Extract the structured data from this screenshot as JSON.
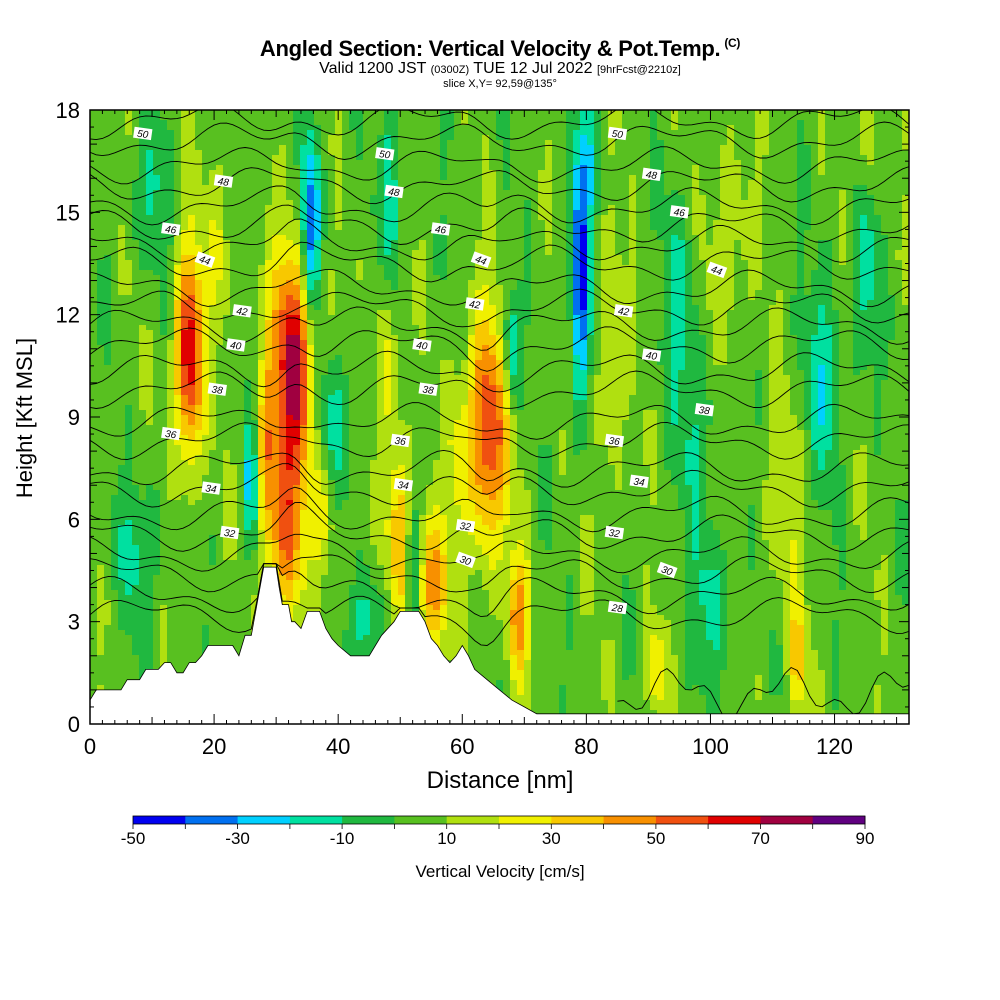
{
  "header": {
    "title": "Angled Section: Vertical Velocity & Pot.Temp.",
    "title_suffix": "(C)",
    "valid_prefix": "Valid 1200 JST",
    "valid_zulu": "(0300Z)",
    "valid_date": "TUE 12 Jul 2022",
    "forecast_tag": "[9hrFcst@2210z]",
    "slice_info": "slice X,Y= 92,59@135°"
  },
  "chart_data": {
    "type": "heatmap",
    "xlabel": "Distance [nm]",
    "ylabel": "Height [Kft MSL]",
    "xlim": [
      0,
      132
    ],
    "ylim": [
      0,
      18
    ],
    "x_ticks": [
      0,
      20,
      40,
      60,
      80,
      100,
      120
    ],
    "y_ticks": [
      0,
      3,
      6,
      9,
      12,
      15,
      18
    ],
    "background_level": 5,
    "colorbar": {
      "label": "Vertical Velocity [cm/s]",
      "tick_labels": [
        "-50",
        "-30",
        "-10",
        "10",
        "30",
        "50",
        "70",
        "90"
      ],
      "levels": [
        -50,
        -40,
        -30,
        -20,
        -10,
        0,
        10,
        20,
        30,
        40,
        50,
        60,
        70,
        80,
        90
      ],
      "colors": [
        "#0000f0",
        "#0070f0",
        "#00d0ff",
        "#00e0a0",
        "#20b840",
        "#58c020",
        "#b0e010",
        "#f0f000",
        "#f8c800",
        "#f89000",
        "#f05010",
        "#e00000",
        "#a00040",
        "#600080"
      ]
    },
    "features": [
      {
        "x": 16,
        "y": 10.8,
        "value": 70,
        "sx": 1.6,
        "sy": 2.2
      },
      {
        "x": 33,
        "y": 10.5,
        "value": 75,
        "sx": 2.5,
        "sy": 2.4
      },
      {
        "x": 31.5,
        "y": 5.5,
        "value": 45,
        "sx": 2.0,
        "sy": 1.8
      },
      {
        "x": 28.5,
        "y": 8.0,
        "value": 35,
        "sx": 1.2,
        "sy": 2.2
      },
      {
        "x": 35.5,
        "y": 14.3,
        "value": -45,
        "sx": 1.1,
        "sy": 2.0
      },
      {
        "x": 38.5,
        "y": 8.8,
        "value": -15,
        "sx": 2.5,
        "sy": 1.6
      },
      {
        "x": 37.5,
        "y": 6.2,
        "value": 25,
        "sx": 1.5,
        "sy": 1.4
      },
      {
        "x": 26.0,
        "y": 7.0,
        "value": -25,
        "sx": 0.8,
        "sy": 1.5
      },
      {
        "x": 48,
        "y": 11.0,
        "value": 25,
        "sx": 1.3,
        "sy": 2.6
      },
      {
        "x": 48.5,
        "y": 15.0,
        "value": -25,
        "sx": 1.0,
        "sy": 2.2
      },
      {
        "x": 50,
        "y": 5.5,
        "value": 45,
        "sx": 1.3,
        "sy": 1.8
      },
      {
        "x": 52,
        "y": 4.5,
        "value": -25,
        "sx": 0.9,
        "sy": 1.6
      },
      {
        "x": 55,
        "y": 4.0,
        "value": 45,
        "sx": 1.8,
        "sy": 1.4
      },
      {
        "x": 64,
        "y": 8.5,
        "value": 60,
        "sx": 2.4,
        "sy": 2.4
      },
      {
        "x": 59,
        "y": 7.5,
        "value": 20,
        "sx": 1.2,
        "sy": 2.0
      },
      {
        "x": 69,
        "y": 3.2,
        "value": 45,
        "sx": 1.2,
        "sy": 1.3
      },
      {
        "x": 68,
        "y": 11.0,
        "value": -25,
        "sx": 1.0,
        "sy": 1.2
      },
      {
        "x": 79,
        "y": 13.0,
        "value": -45,
        "sx": 1.1,
        "sy": 2.4
      },
      {
        "x": 80,
        "y": 16.5,
        "value": -15,
        "sx": 1.3,
        "sy": 1.2
      },
      {
        "x": 84,
        "y": 10.5,
        "value": 22,
        "sx": 1.5,
        "sy": 2.5
      },
      {
        "x": 45,
        "y": 3.0,
        "value": -15,
        "sx": 2.0,
        "sy": 1.0
      },
      {
        "x": 91,
        "y": 1.6,
        "value": 30,
        "sx": 1.3,
        "sy": 0.9
      },
      {
        "x": 114,
        "y": 1.8,
        "value": 35,
        "sx": 1.0,
        "sy": 1.2
      },
      {
        "x": 125,
        "y": 17.2,
        "value": 22,
        "sx": 1.1,
        "sy": 1.5
      },
      {
        "x": 103,
        "y": 14.0,
        "value": 18,
        "sx": 2.5,
        "sy": 2.5
      },
      {
        "x": 118,
        "y": 10.0,
        "value": -15,
        "sx": 2.0,
        "sy": 2.2
      },
      {
        "x": 95,
        "y": 12.5,
        "value": -12,
        "sx": 2.0,
        "sy": 2.0
      },
      {
        "x": 125,
        "y": 13.0,
        "value": -15,
        "sx": 1.5,
        "sy": 2.0
      },
      {
        "x": 10,
        "y": 15.5,
        "value": -12,
        "sx": 2.0,
        "sy": 1.5
      },
      {
        "x": 21,
        "y": 14.0,
        "value": 18,
        "sx": 1.5,
        "sy": 2.0
      },
      {
        "x": 100,
        "y": 3.5,
        "value": -12,
        "sx": 2.5,
        "sy": 1.5
      },
      {
        "x": 8,
        "y": 5.0,
        "value": -12,
        "sx": 2.5,
        "sy": 1.5
      },
      {
        "x": 112,
        "y": 6.0,
        "value": 18,
        "sx": 2.5,
        "sy": 2.0
      },
      {
        "x": 98,
        "y": 8.5,
        "value": -8,
        "sx": 3.0,
        "sy": 1.8
      }
    ],
    "terrain": [
      [
        0,
        0.7
      ],
      [
        1,
        1.0
      ],
      [
        5,
        1.0
      ],
      [
        6,
        1.3
      ],
      [
        8,
        1.3
      ],
      [
        9,
        1.6
      ],
      [
        11,
        1.6
      ],
      [
        12,
        1.8
      ],
      [
        13,
        1.8
      ],
      [
        14,
        1.5
      ],
      [
        15,
        1.5
      ],
      [
        16,
        1.8
      ],
      [
        17,
        1.8
      ],
      [
        18,
        2.0
      ],
      [
        19,
        2.3
      ],
      [
        23,
        2.3
      ],
      [
        24,
        2.0
      ],
      [
        25,
        2.6
      ],
      [
        26,
        2.6
      ],
      [
        27,
        3.6
      ],
      [
        28,
        4.6
      ],
      [
        30,
        4.6
      ],
      [
        30.5,
        4.0
      ],
      [
        31,
        3.5
      ],
      [
        32,
        3.5
      ],
      [
        32.5,
        3.0
      ],
      [
        33,
        3.0
      ],
      [
        34,
        2.8
      ],
      [
        35,
        3.3
      ],
      [
        37,
        3.3
      ],
      [
        38,
        2.8
      ],
      [
        39,
        2.5
      ],
      [
        40,
        2.3
      ],
      [
        42,
        2.0
      ],
      [
        45,
        2.0
      ],
      [
        46,
        2.3
      ],
      [
        47,
        2.6
      ],
      [
        49,
        3.0
      ],
      [
        50,
        3.3
      ],
      [
        53,
        3.3
      ],
      [
        54,
        3.0
      ],
      [
        55,
        2.5
      ],
      [
        56,
        2.3
      ],
      [
        57,
        2.0
      ],
      [
        58,
        1.8
      ],
      [
        59,
        2.0
      ],
      [
        60,
        2.3
      ],
      [
        61,
        2.0
      ],
      [
        62,
        1.6
      ],
      [
        64,
        1.3
      ],
      [
        66,
        1.0
      ],
      [
        68,
        0.7
      ],
      [
        70,
        0.5
      ],
      [
        72,
        0.3
      ],
      [
        132,
        0.3
      ]
    ],
    "isentropes": {
      "levels": [
        28,
        30,
        32,
        34,
        36,
        38,
        40,
        42,
        44,
        46,
        48,
        50
      ],
      "labels": [
        {
          "text": "50",
          "x": 8.5,
          "y": 17.3
        },
        {
          "text": "50",
          "x": 47.5,
          "y": 16.7
        },
        {
          "text": "50",
          "x": 85,
          "y": 17.3
        },
        {
          "text": "48",
          "x": 21.5,
          "y": 15.9
        },
        {
          "text": "48",
          "x": 49,
          "y": 15.6
        },
        {
          "text": "48",
          "x": 90.5,
          "y": 16.1
        },
        {
          "text": "46",
          "x": 13,
          "y": 14.5
        },
        {
          "text": "46",
          "x": 56.5,
          "y": 14.5
        },
        {
          "text": "46",
          "x": 95,
          "y": 15.0
        },
        {
          "text": "44",
          "x": 18.5,
          "y": 13.6
        },
        {
          "text": "44",
          "x": 63,
          "y": 13.6
        },
        {
          "text": "44",
          "x": 101,
          "y": 13.3
        },
        {
          "text": "42",
          "x": 24.5,
          "y": 12.1
        },
        {
          "text": "42",
          "x": 62,
          "y": 12.3
        },
        {
          "text": "42",
          "x": 86,
          "y": 12.1
        },
        {
          "text": "40",
          "x": 23.5,
          "y": 11.1
        },
        {
          "text": "40",
          "x": 53.5,
          "y": 11.1
        },
        {
          "text": "40",
          "x": 90.5,
          "y": 10.8
        },
        {
          "text": "38",
          "x": 20.5,
          "y": 9.8
        },
        {
          "text": "38",
          "x": 54.5,
          "y": 9.8
        },
        {
          "text": "38",
          "x": 99,
          "y": 9.2
        },
        {
          "text": "36",
          "x": 13,
          "y": 8.5
        },
        {
          "text": "36",
          "x": 50,
          "y": 8.3
        },
        {
          "text": "36",
          "x": 84.5,
          "y": 8.3
        },
        {
          "text": "34",
          "x": 19.5,
          "y": 6.9
        },
        {
          "text": "34",
          "x": 50.5,
          "y": 7.0
        },
        {
          "text": "34",
          "x": 88.5,
          "y": 7.1
        },
        {
          "text": "32",
          "x": 22.5,
          "y": 5.6
        },
        {
          "text": "32",
          "x": 60.5,
          "y": 5.8
        },
        {
          "text": "32",
          "x": 84.5,
          "y": 5.6
        },
        {
          "text": "30",
          "x": 60.5,
          "y": 4.8
        },
        {
          "text": "30",
          "x": 93,
          "y": 4.5
        },
        {
          "text": "28",
          "x": 85,
          "y": 3.4
        }
      ]
    }
  }
}
